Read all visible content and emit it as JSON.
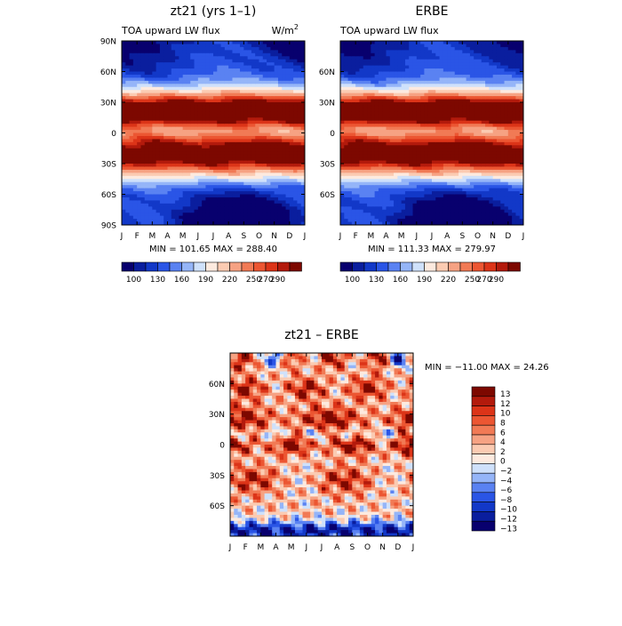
{
  "palette_15": [
    "#08006e",
    "#0a1e9e",
    "#1238c8",
    "#2a55e6",
    "#5a82f2",
    "#95b5f8",
    "#cfe1fb",
    "#fdeadf",
    "#fbcbb2",
    "#f6a283",
    "#f17a55",
    "#ec5632",
    "#dc3418",
    "#b31a0c",
    "#7d0800"
  ],
  "panels": [
    {
      "title": "zt21 (yrs 1–1)",
      "subtitle_left": "TOA upward LW flux",
      "units_prefix": "W/m",
      "units_exp": "2",
      "stats": "MIN = 101.65 MAX = 288.40",
      "colorbar_labels": [
        "100",
        "130",
        "160",
        "190",
        "220",
        "250",
        "270",
        "290"
      ]
    },
    {
      "title": "ERBE",
      "subtitle_left": "TOA upward LW flux",
      "stats": "MIN = 111.33 MAX = 279.97",
      "colorbar_labels": [
        "100",
        "130",
        "160",
        "190",
        "220",
        "250",
        "270",
        "290"
      ]
    },
    {
      "title": "zt21 – ERBE",
      "stats": "MIN = −11.00 MAX =  24.26",
      "colorbar_labels": [
        "13",
        "12",
        "10",
        "8",
        "6",
        "4",
        "2",
        "0",
        "−2",
        "−4",
        "−6",
        "−8",
        "−10",
        "−12",
        "−13"
      ]
    }
  ],
  "chart_data": [
    {
      "type": "heatmap",
      "title": "zt21 (yrs 1–1)",
      "subtitle": "TOA upward LW flux",
      "units": "W/m2",
      "x": [
        "J",
        "F",
        "M",
        "A",
        "M",
        "J",
        "J",
        "A",
        "S",
        "O",
        "N",
        "D",
        "J"
      ],
      "y_ticks": [
        "90N",
        "60N",
        "30N",
        "0",
        "30S",
        "60S",
        "90S"
      ],
      "ylim": [
        -90,
        90
      ],
      "levels": [
        100,
        115,
        130,
        145,
        160,
        175,
        190,
        205,
        220,
        235,
        250,
        260,
        270,
        280,
        290
      ],
      "min": 101.65,
      "max": 288.4
    },
    {
      "type": "heatmap",
      "title": "ERBE",
      "subtitle": "TOA upward LW flux",
      "x": [
        "J",
        "F",
        "M",
        "A",
        "M",
        "J",
        "J",
        "A",
        "S",
        "O",
        "N",
        "D",
        "J"
      ],
      "y_ticks": [
        "60N",
        "30N",
        "0",
        "30S",
        "60S"
      ],
      "ylim": [
        -90,
        90
      ],
      "levels": [
        100,
        115,
        130,
        145,
        160,
        175,
        190,
        205,
        220,
        235,
        250,
        260,
        270,
        280,
        290
      ],
      "min": 111.33,
      "max": 279.97
    },
    {
      "type": "heatmap",
      "title": "zt21 – ERBE",
      "x": [
        "J",
        "F",
        "M",
        "A",
        "M",
        "J",
        "J",
        "A",
        "S",
        "O",
        "N",
        "D",
        "J"
      ],
      "y_ticks": [
        "60N",
        "30N",
        "0",
        "30S",
        "60S"
      ],
      "ylim": [
        -90,
        90
      ],
      "levels": [
        -13,
        -12,
        -10,
        -8,
        -6,
        -4,
        -2,
        0,
        2,
        4,
        6,
        8,
        10,
        12,
        13
      ],
      "min": -11.0,
      "max": 24.26
    }
  ]
}
